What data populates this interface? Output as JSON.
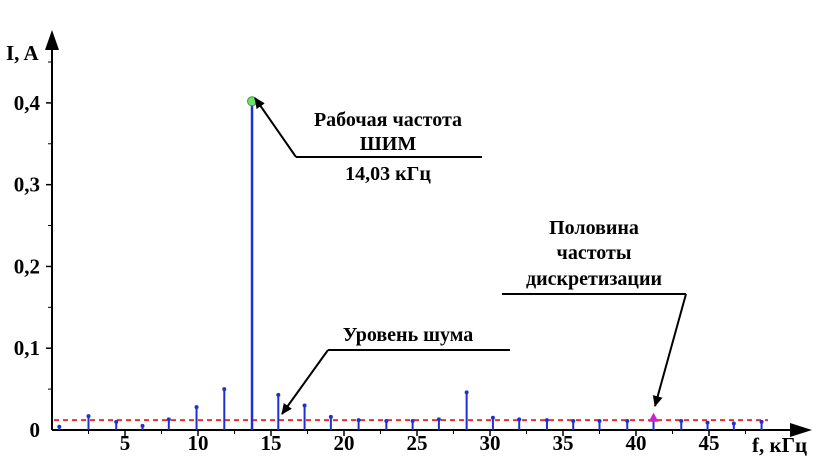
{
  "chart_data": {
    "type": "stem",
    "xlabel": "f, кГц",
    "ylabel": "I, A",
    "xlim": [
      0,
      50
    ],
    "ylim": [
      0,
      0.45
    ],
    "x_ticks": [
      5,
      10,
      15,
      20,
      25,
      30,
      35,
      40,
      45
    ],
    "x_tick_labels": [
      "5",
      "10",
      "15",
      "20",
      "25",
      "30",
      "35",
      "40",
      "45"
    ],
    "y_ticks": [
      0,
      0.1,
      0.2,
      0.3,
      0.4
    ],
    "y_tick_labels": [
      "0",
      "0,1",
      "0,2",
      "0,3",
      "0,4"
    ],
    "grid": false,
    "colors": {
      "stems": "#1f2fd6",
      "noise_line": "#e83030",
      "peak_marker": "#6ee06e",
      "half_freq_marker": "#d020d0",
      "axes": "#000000"
    },
    "series": [
      {
        "x": [
          0.5,
          2.5,
          4.4,
          6.2,
          8.0,
          9.9,
          11.8,
          13.7,
          15.5,
          17.3,
          19.1,
          21.0,
          22.9,
          24.7,
          26.5,
          28.4,
          30.2,
          32.0,
          33.9,
          35.7,
          37.5,
          39.4,
          41.2,
          43.1,
          44.9,
          46.7,
          48.6
        ],
        "y": [
          0.004,
          0.017,
          0.01,
          0.005,
          0.013,
          0.028,
          0.05,
          0.402,
          0.043,
          0.03,
          0.016,
          0.012,
          0.011,
          0.011,
          0.013,
          0.046,
          0.015,
          0.013,
          0.012,
          0.011,
          0.011,
          0.011,
          0.015,
          0.011,
          0.009,
          0.008,
          0.01
        ]
      }
    ],
    "noise_level": 0.012,
    "annotations": [
      {
        "lines": [
          "Рабочая частота",
          "ШИМ",
          "14,03 кГц"
        ],
        "target_x": 13.7,
        "target_y": 0.402
      },
      {
        "lines": [
          "Уровень шума"
        ],
        "target_x": 15.0,
        "target_y": 0.012
      },
      {
        "lines": [
          "Половина",
          "частоты",
          "дискретизации"
        ],
        "target_x": 41.2,
        "target_y": 0.015
      }
    ]
  }
}
